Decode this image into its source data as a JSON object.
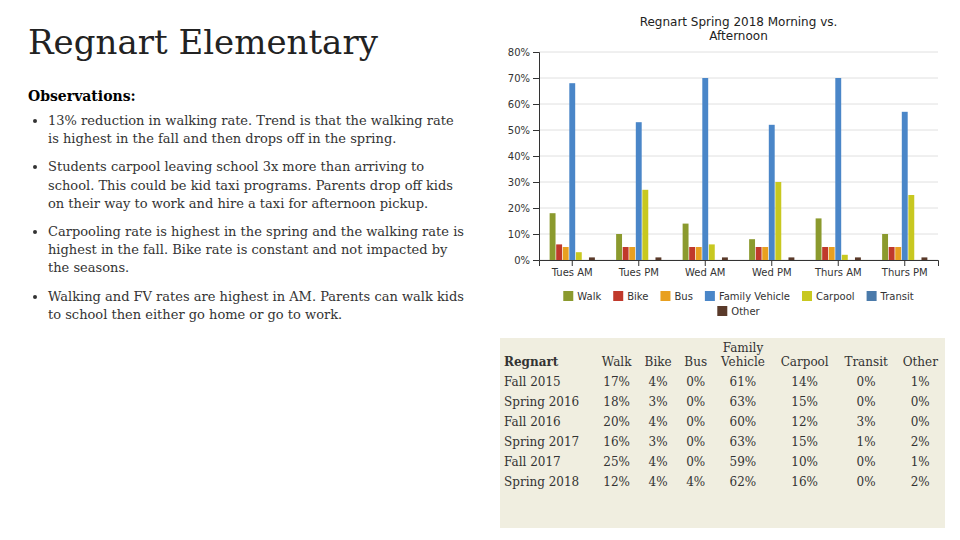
{
  "title": "Regnart Elementary",
  "observations_title": "Observations:",
  "bullets": [
    "13% reduction in walking rate. Trend is that the walking rate is highest in the fall and then drops off in the spring.",
    "Students carpool leaving school 3x more than arriving to school. This could be kid taxi programs. Parents drop off kids on their way to work and hire a taxi for afternoon pickup.",
    "Carpooling rate is highest in the spring and the walking rate is highest in the fall. Bike rate is constant and not impacted by the seasons.",
    "Walking and FV rates are highest in AM. Parents can walk kids to school then either go home or go to work."
  ],
  "chart_data": {
    "type": "bar",
    "title": "Regnart Spring 2018 Morning vs.\nAfternoon",
    "categories": [
      "Tues AM",
      "Tues PM",
      "Wed AM",
      "Wed PM",
      "Thurs AM",
      "Thurs PM"
    ],
    "series": [
      {
        "name": "Walk",
        "color": "#8B9A2E",
        "values": [
          18,
          10,
          14,
          8,
          16,
          10
        ]
      },
      {
        "name": "Bike",
        "color": "#C0392B",
        "values": [
          6,
          5,
          5,
          5,
          5,
          5
        ]
      },
      {
        "name": "Bus",
        "color": "#E8A020",
        "values": [
          5,
          5,
          5,
          5,
          5,
          5
        ]
      },
      {
        "name": "Family Vehicle",
        "color": "#4A86C8",
        "values": [
          68,
          53,
          70,
          52,
          70,
          57
        ]
      },
      {
        "name": "Carpool",
        "color": "#C8C820",
        "values": [
          3,
          27,
          6,
          30,
          2,
          25
        ]
      },
      {
        "name": "Transit",
        "color": "#4A7AAA",
        "values": [
          0,
          0,
          0,
          0,
          0,
          0
        ]
      },
      {
        "name": "Other",
        "color": "#5A3A2A",
        "values": [
          1,
          1,
          1,
          1,
          1,
          1
        ]
      }
    ],
    "ylim": [
      0,
      80
    ],
    "yticks": [
      {
        "value": 0,
        "label": "0%"
      },
      {
        "value": 10,
        "label": "10%"
      },
      {
        "value": 20,
        "label": "20%"
      },
      {
        "value": 30,
        "label": "30%"
      },
      {
        "value": 40,
        "label": "40%"
      },
      {
        "value": 50,
        "label": "50%"
      },
      {
        "value": 60,
        "label": "60%"
      },
      {
        "value": 70,
        "label": "70%"
      },
      {
        "value": 80,
        "label": "80%"
      }
    ],
    "grid": true,
    "legend": "bottom"
  },
  "table": {
    "columns": [
      "Regnart",
      "Walk",
      "Bike",
      "Bus",
      "Family\nVehicle",
      "Carpool",
      "Transit",
      "Other"
    ],
    "rows": [
      [
        "Fall 2015",
        "17%",
        "4%",
        "0%",
        "61%",
        "14%",
        "0%",
        "1%"
      ],
      [
        "Spring 2016",
        "18%",
        "3%",
        "0%",
        "63%",
        "15%",
        "0%",
        "0%"
      ],
      [
        "Fall 2016",
        "20%",
        "4%",
        "0%",
        "60%",
        "12%",
        "3%",
        "0%"
      ],
      [
        "Spring 2017",
        "16%",
        "3%",
        "0%",
        "63%",
        "15%",
        "1%",
        "2%"
      ],
      [
        "Fall 2017",
        "25%",
        "4%",
        "0%",
        "59%",
        "10%",
        "0%",
        "1%"
      ],
      [
        "Spring 2018",
        "12%",
        "4%",
        "4%",
        "62%",
        "16%",
        "0%",
        "2%"
      ]
    ]
  }
}
